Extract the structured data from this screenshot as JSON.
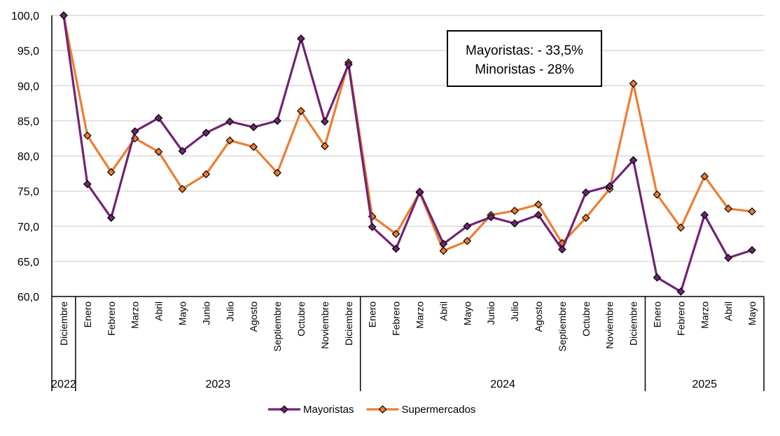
{
  "chart_data": {
    "type": "line",
    "title": "",
    "xlabel": "",
    "ylabel": "",
    "ylim": [
      60,
      100
    ],
    "y_ticks": [
      "60,0",
      "65,0",
      "70,0",
      "75,0",
      "80,0",
      "85,0",
      "90,0",
      "95,0",
      "100,0"
    ],
    "grid": true,
    "legend_position": "bottom",
    "annotation": [
      "Mayoristas: - 33,5%",
      "Minoristas - 28%"
    ],
    "year_groups": [
      {
        "label": "2022",
        "months": [
          "Diciembre"
        ]
      },
      {
        "label": "2023",
        "months": [
          "Enero",
          "Febrero",
          "Marzo",
          "Abril",
          "Mayo",
          "Junio",
          "Julio",
          "Agosto",
          "Septiembre",
          "Octubre",
          "Noviembre",
          "Diciembre"
        ]
      },
      {
        "label": "2024",
        "months": [
          "Enero",
          "Febrero",
          "Marzo",
          "Abril",
          "Mayo",
          "Junio",
          "Julio",
          "Agosto",
          "Septiembre",
          "Octubre",
          "Noviembre",
          "Diciembre"
        ]
      },
      {
        "label": "2025",
        "months": [
          "Enero",
          "Febrero",
          "Marzo",
          "Abril",
          "Mayo"
        ]
      }
    ],
    "series": [
      {
        "name": "Mayoristas",
        "color": "#702473",
        "values": [
          100,
          76.0,
          71.2,
          83.5,
          85.4,
          80.7,
          83.3,
          84.9,
          84.1,
          85.0,
          96.7,
          84.9,
          93.0,
          69.9,
          66.8,
          74.9,
          67.5,
          70.0,
          71.3,
          70.4,
          71.6,
          66.7,
          74.8,
          75.7,
          79.4,
          62.7,
          60.7,
          71.6,
          65.5,
          66.6
        ]
      },
      {
        "name": "Supermercados",
        "color": "#ED7D31",
        "values": [
          100,
          82.9,
          77.7,
          82.5,
          80.6,
          75.3,
          77.4,
          82.2,
          81.3,
          77.6,
          86.4,
          81.4,
          93.3,
          71.4,
          68.9,
          74.8,
          66.5,
          67.9,
          71.6,
          72.2,
          73.1,
          67.6,
          71.2,
          75.3,
          90.3,
          74.5,
          69.8,
          77.1,
          72.5,
          72.1
        ]
      }
    ]
  }
}
